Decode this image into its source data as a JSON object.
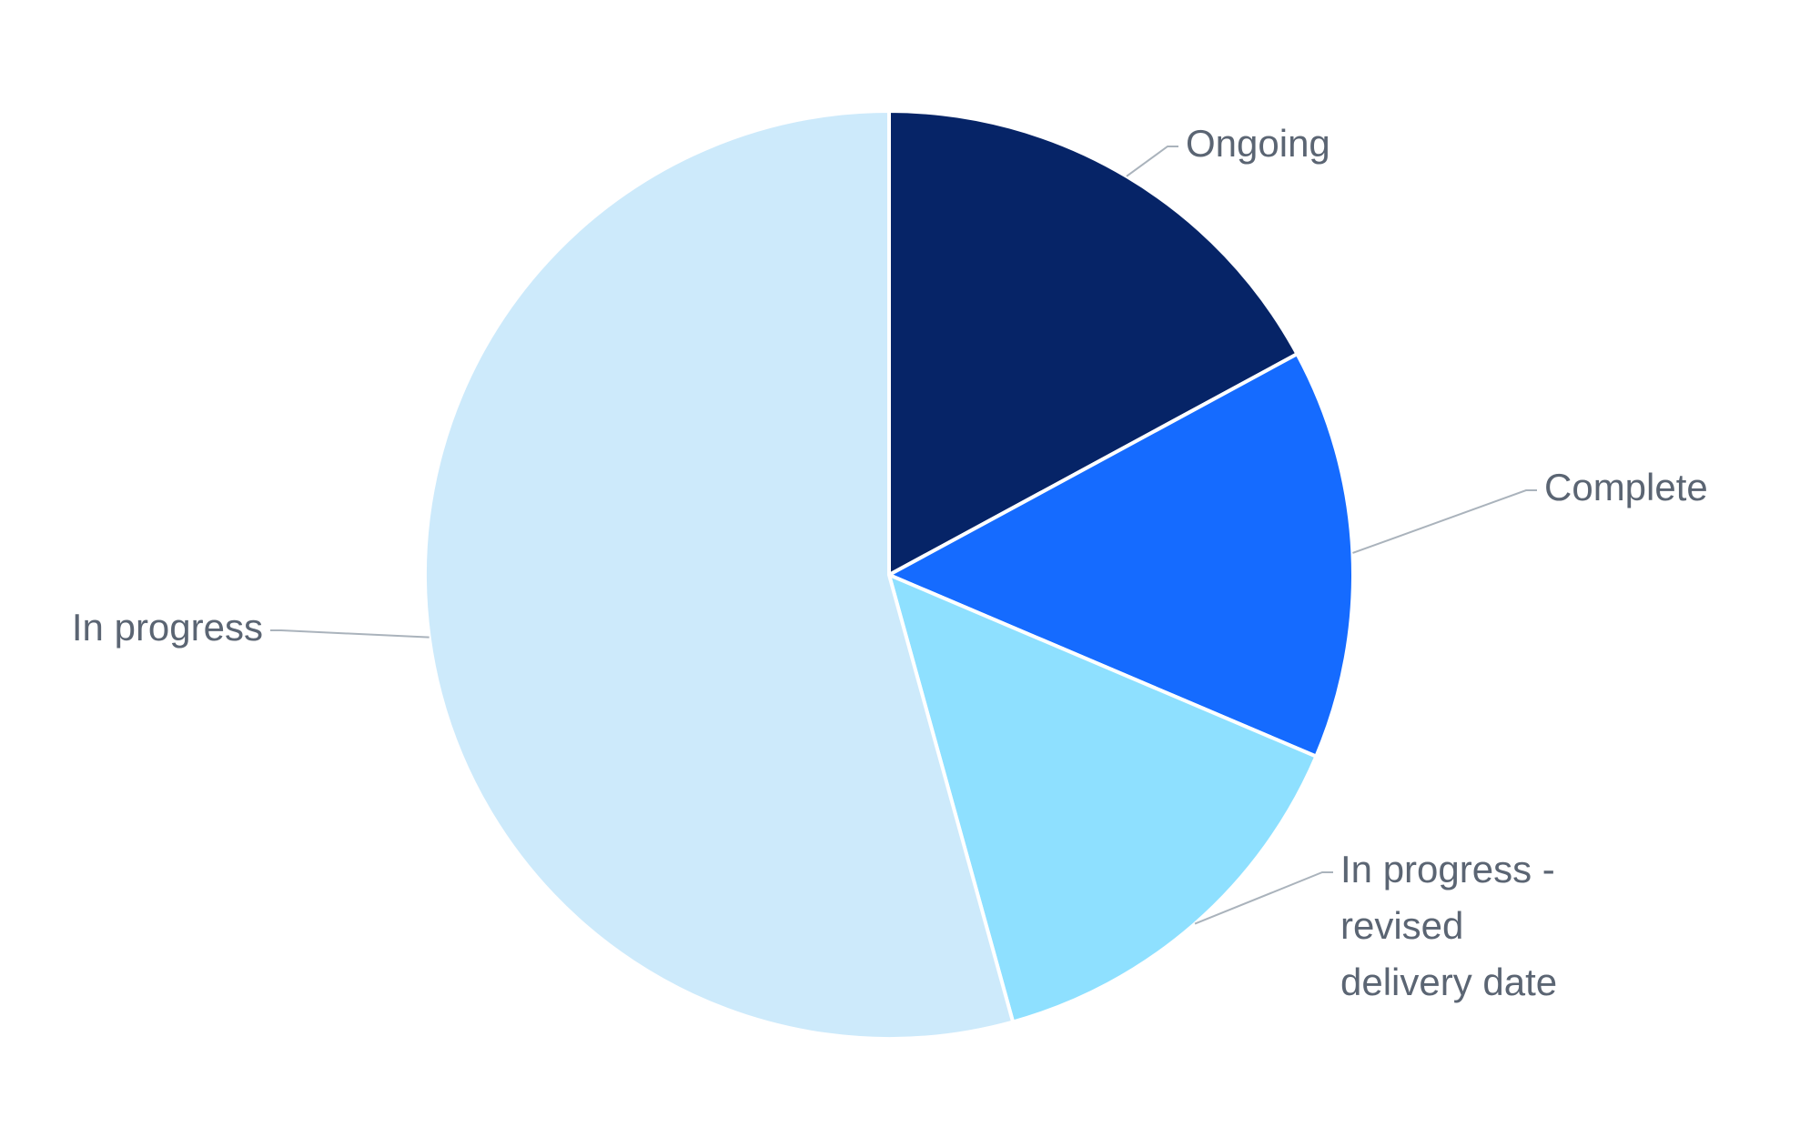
{
  "chart_data": {
    "type": "pie",
    "categories": [
      "Ongoing",
      "Complete",
      "In progress - revised delivery date",
      "In progress"
    ],
    "values": [
      17.1,
      14.3,
      14.3,
      54.3
    ],
    "colors": [
      "#062467",
      "#156bff",
      "#8ee0ff",
      "#cdeafb"
    ]
  }
}
